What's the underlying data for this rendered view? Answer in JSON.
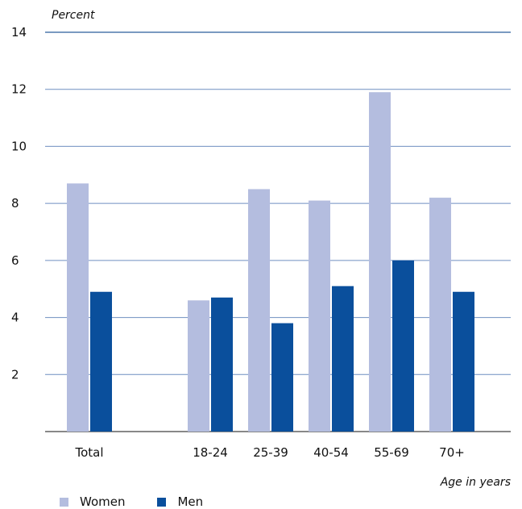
{
  "chart_data": {
    "type": "bar",
    "ylabel": "Percent",
    "xlabel": "Age in years",
    "ylim": [
      0,
      14
    ],
    "yticks": [
      2,
      4,
      6,
      8,
      10,
      12,
      14
    ],
    "grid": true,
    "legend_position": "bottom-left",
    "categories": [
      "Total",
      "18-24",
      "25-39",
      "40-54",
      "55-69",
      "70+"
    ],
    "series": [
      {
        "name": "Women",
        "color": "#b4bddf",
        "values": [
          8.7,
          4.6,
          8.5,
          8.1,
          11.9,
          8.2
        ]
      },
      {
        "name": "Men",
        "color": "#0a4f9c",
        "values": [
          4.9,
          4.7,
          3.8,
          5.1,
          6.0,
          4.9
        ]
      }
    ]
  }
}
